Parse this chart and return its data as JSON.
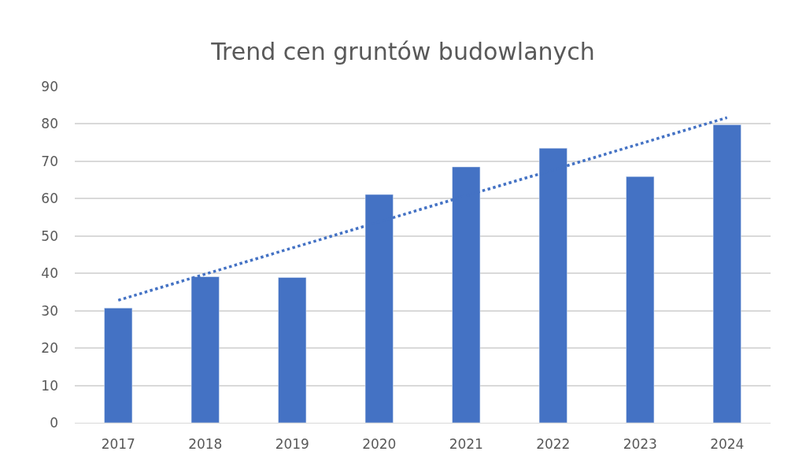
{
  "chart_data": {
    "type": "bar",
    "title": "Trend cen gruntów budowlanych",
    "categories": [
      "2017",
      "2018",
      "2019",
      "2020",
      "2021",
      "2022",
      "2023",
      "2024"
    ],
    "series": [
      {
        "color": "#4472c4",
        "values": [
          30.7,
          39.1,
          38.9,
          61.1,
          68.5,
          73.5,
          65.9,
          79.8
        ]
      },
      {
        "type": "line",
        "color": "#4472c4",
        "line_style": "dotted",
        "marker": "none",
        "values": [
          32.8,
          39.8,
          46.8,
          53.8,
          60.8,
          67.7,
          74.7,
          81.7
        ]
      }
    ],
    "ylim": [
      0,
      90
    ],
    "yticks": [
      0,
      10,
      20,
      30,
      40,
      50,
      60,
      70,
      80,
      90
    ],
    "grid": "y"
  }
}
